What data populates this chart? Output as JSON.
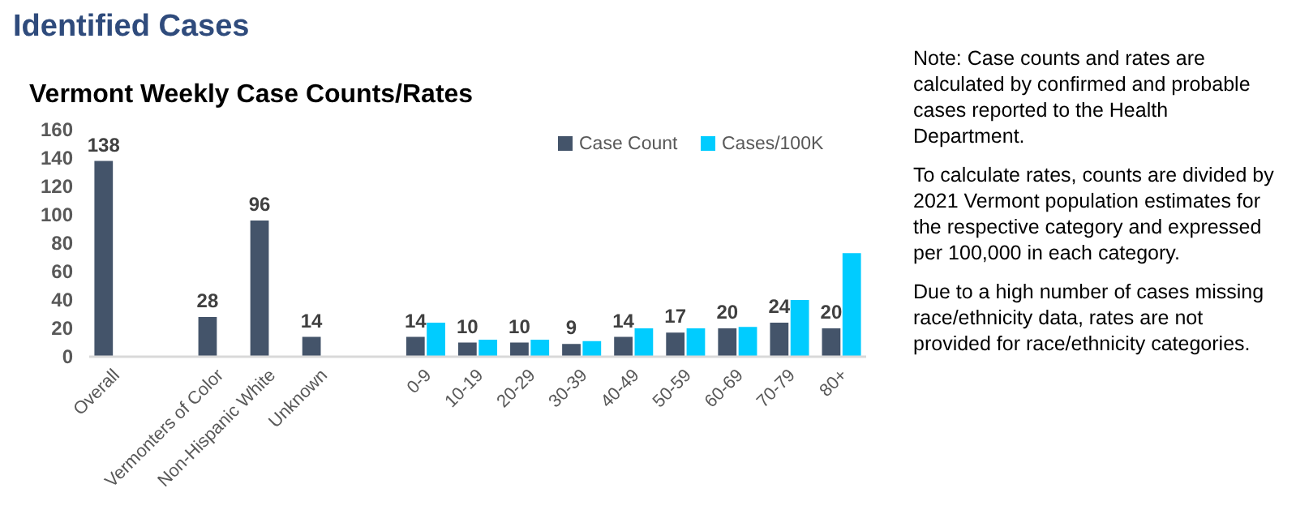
{
  "chart_data": {
    "type": "bar",
    "title": "Identified Cases",
    "subtitle": "Vermont Weekly Case Counts/Rates",
    "categories": [
      "Overall",
      null,
      "Vermonters of Color",
      "Non-Hispanic White",
      "Unknown",
      null,
      "0-9",
      "10-19",
      "20-29",
      "30-39",
      "40-49",
      "50-59",
      "60-69",
      "70-79",
      "80+"
    ],
    "series": [
      {
        "name": "Case Count",
        "color": "#44546a",
        "values": [
          138,
          null,
          28,
          96,
          14,
          null,
          14,
          10,
          10,
          9,
          14,
          17,
          20,
          24,
          20
        ],
        "value_labels": [
          "138",
          null,
          "28",
          "96",
          "14",
          null,
          "14",
          "10",
          "10",
          "9",
          "14",
          "17",
          "20",
          "24",
          "20"
        ]
      },
      {
        "name": "Cases/100K",
        "color": "#00ccff",
        "values": [
          null,
          null,
          null,
          null,
          null,
          null,
          24,
          12,
          12,
          11,
          20,
          20,
          21,
          40,
          73
        ]
      }
    ],
    "ylim": [
      0,
      160
    ],
    "yticks": [
      0,
      20,
      40,
      60,
      80,
      100,
      120,
      140,
      160
    ],
    "grid": false,
    "legend": "top right",
    "annotations": [
      "Note: Case counts and rates are calculated by confirmed and probable cases reported to the Health Department.",
      "To calculate rates, counts are divided by 2021 Vermont population estimates for the respective category and expressed per 100,000 in each category.",
      "Due to a high number of cases missing race/ethnicity data, rates are not provided for race/ethnicity categories."
    ]
  }
}
